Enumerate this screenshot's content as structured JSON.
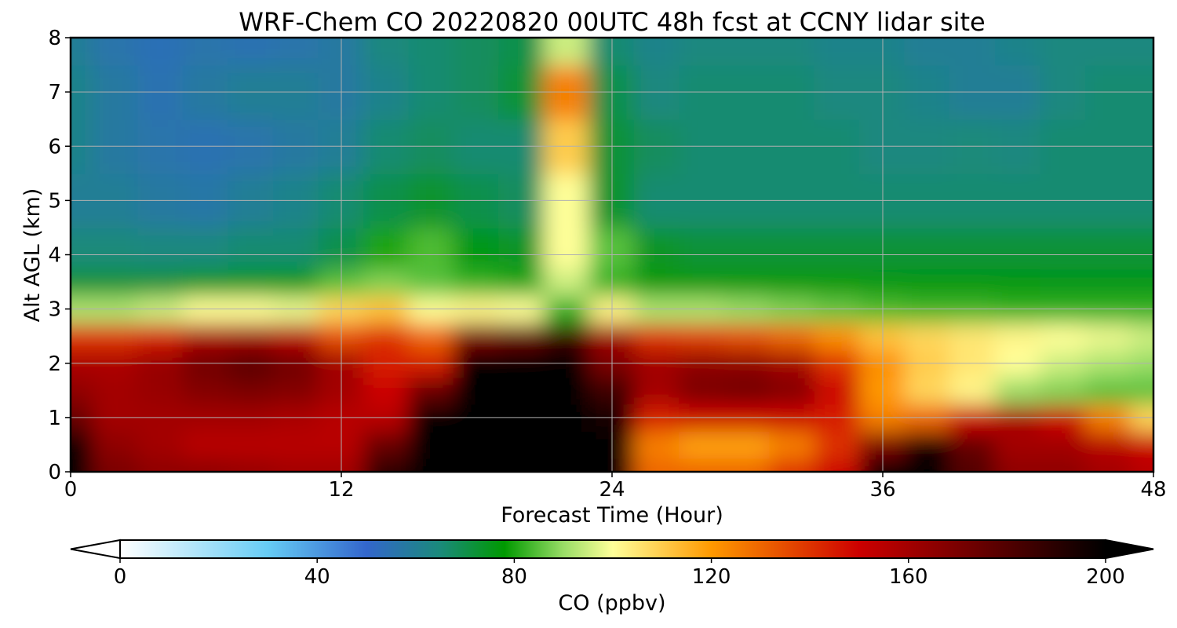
{
  "chart_data": {
    "type": "heatmap",
    "title": "WRF-Chem CO  20220820 00UTC 48h fcst at CCNY lidar site",
    "xlabel": "Forecast Time (Hour)",
    "ylabel": "Alt AGL (km)",
    "xlim": [
      0,
      48
    ],
    "ylim": [
      0,
      8
    ],
    "xticks": [
      0,
      12,
      24,
      36,
      48
    ],
    "yticks": [
      0,
      1,
      2,
      3,
      4,
      5,
      6,
      7,
      8
    ],
    "grid": true,
    "colorbar": {
      "label": "CO  (ppbv)",
      "range": [
        0,
        200
      ],
      "ticks": [
        0,
        40,
        80,
        120,
        160,
        200
      ],
      "extend": "both",
      "orientation": "horizontal",
      "stops": [
        {
          "value": 0,
          "color": "#ffffff"
        },
        {
          "value": 30,
          "color": "#66ccf5"
        },
        {
          "value": 50,
          "color": "#3366cc"
        },
        {
          "value": 65,
          "color": "#1a8a7a"
        },
        {
          "value": 78,
          "color": "#009900"
        },
        {
          "value": 90,
          "color": "#99dd66"
        },
        {
          "value": 100,
          "color": "#ffff99"
        },
        {
          "value": 120,
          "color": "#ff9900"
        },
        {
          "value": 150,
          "color": "#cc0000"
        },
        {
          "value": 175,
          "color": "#660000"
        },
        {
          "value": 200,
          "color": "#000000"
        }
      ]
    },
    "x": [
      0,
      2,
      4,
      6,
      8,
      10,
      12,
      14,
      16,
      18,
      20,
      22,
      24,
      26,
      28,
      30,
      32,
      34,
      36,
      38,
      40,
      42,
      44,
      46,
      48
    ],
    "y": [
      0,
      0.5,
      1,
      1.5,
      2,
      2.5,
      3,
      3.5,
      4,
      5,
      6,
      7,
      8
    ],
    "z": [
      [
        200,
        170,
        165,
        165,
        163,
        160,
        160,
        190,
        200,
        200,
        200,
        200,
        200,
        130,
        130,
        130,
        140,
        150,
        200,
        200,
        180,
        165,
        165,
        160,
        155
      ],
      [
        200,
        165,
        160,
        155,
        155,
        155,
        155,
        175,
        200,
        200,
        200,
        200,
        200,
        125,
        118,
        118,
        125,
        140,
        170,
        195,
        175,
        160,
        160,
        155,
        150
      ],
      [
        175,
        160,
        160,
        160,
        160,
        158,
        155,
        155,
        200,
        200,
        200,
        200,
        195,
        145,
        150,
        150,
        150,
        145,
        125,
        130,
        150,
        158,
        150,
        125,
        108
      ],
      [
        165,
        160,
        163,
        168,
        170,
        168,
        160,
        150,
        175,
        200,
        200,
        200,
        185,
        160,
        170,
        172,
        168,
        150,
        120,
        108,
        102,
        90,
        88,
        85,
        85
      ],
      [
        158,
        158,
        163,
        172,
        178,
        172,
        160,
        145,
        145,
        200,
        200,
        200,
        170,
        160,
        165,
        165,
        160,
        140,
        122,
        110,
        105,
        100,
        95,
        92,
        90
      ],
      [
        140,
        140,
        145,
        158,
        160,
        155,
        135,
        140,
        130,
        170,
        175,
        185,
        160,
        140,
        138,
        135,
        130,
        122,
        112,
        108,
        105,
        102,
        100,
        98,
        95
      ],
      [
        92,
        92,
        95,
        100,
        100,
        98,
        108,
        112,
        100,
        102,
        100,
        82,
        102,
        92,
        92,
        90,
        88,
        86,
        84,
        83,
        83,
        82,
        82,
        82,
        82
      ],
      [
        72,
        72,
        72,
        75,
        76,
        78,
        85,
        88,
        85,
        82,
        80,
        95,
        82,
        78,
        78,
        78,
        78,
        78,
        77,
        77,
        77,
        77,
        76,
        76,
        76
      ],
      [
        65,
        65,
        64,
        64,
        66,
        66,
        70,
        80,
        84,
        76,
        74,
        100,
        85,
        74,
        72,
        72,
        72,
        72,
        72,
        72,
        72,
        72,
        72,
        72,
        72
      ],
      [
        60,
        60,
        58,
        57,
        60,
        62,
        66,
        70,
        73,
        70,
        68,
        100,
        73,
        66,
        66,
        66,
        66,
        66,
        66,
        66,
        66,
        66,
        66,
        66,
        66
      ],
      [
        62,
        58,
        56,
        55,
        56,
        58,
        60,
        66,
        68,
        66,
        66,
        110,
        72,
        68,
        66,
        66,
        66,
        66,
        64,
        64,
        65,
        64,
        66,
        66,
        66
      ],
      [
        62,
        58,
        55,
        58,
        60,
        60,
        58,
        62,
        66,
        68,
        72,
        125,
        70,
        64,
        66,
        66,
        66,
        64,
        64,
        62,
        60,
        60,
        64,
        66,
        66
      ],
      [
        60,
        56,
        54,
        56,
        55,
        56,
        58,
        64,
        66,
        68,
        70,
        95,
        66,
        62,
        64,
        64,
        64,
        62,
        62,
        60,
        60,
        62,
        64,
        64,
        64
      ]
    ]
  }
}
